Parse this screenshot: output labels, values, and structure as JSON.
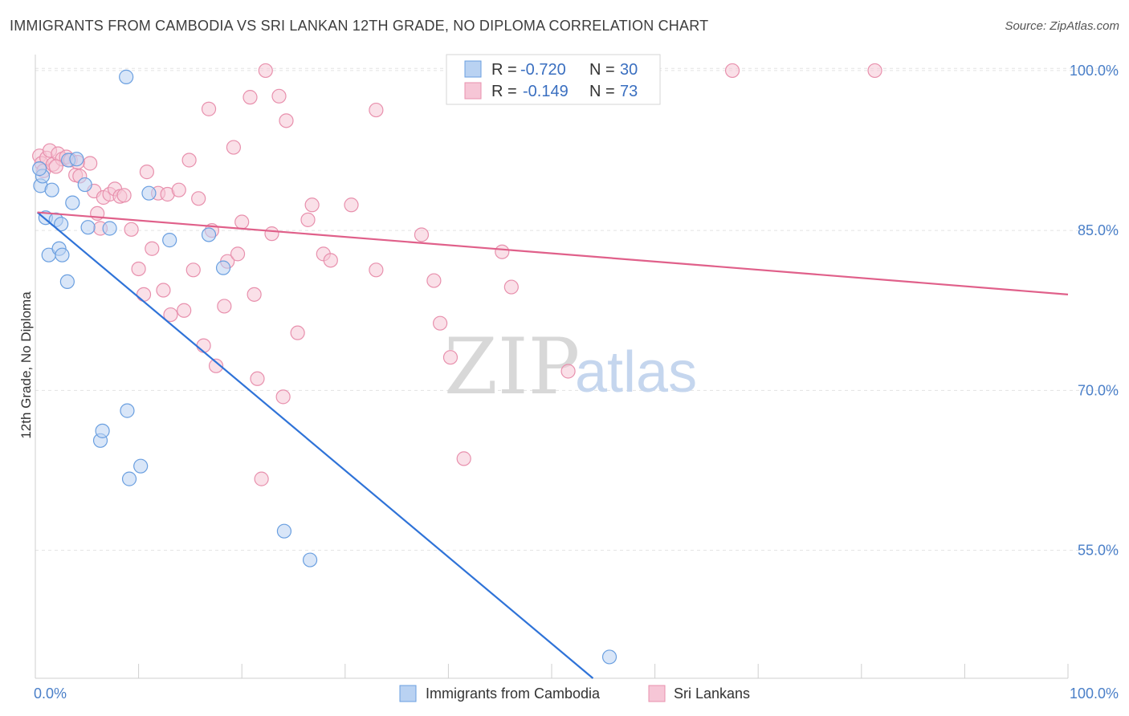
{
  "title": "IMMIGRANTS FROM CAMBODIA VS SRI LANKAN 12TH GRADE, NO DIPLOMA CORRELATION CHART",
  "source": "Source: ZipAtlas.com",
  "watermark": {
    "zip": "ZIP",
    "atlas": "atlas"
  },
  "legend_box": {
    "rows": [
      {
        "r_label": "R = ",
        "r_value": "-0.720",
        "n_label": "N = ",
        "n_value": "30"
      },
      {
        "r_label": "R = ",
        "r_value": "-0.149",
        "n_label": "N = ",
        "n_value": "73"
      }
    ]
  },
  "chart_data": {
    "type": "scatter",
    "xlabel": "",
    "ylabel": "12th Grade, No Diploma",
    "xlim": [
      0,
      100
    ],
    "ylim": [
      43,
      101.5
    ],
    "x_tick_labels": [
      "0.0%",
      "100.0%"
    ],
    "y_ticks": [
      {
        "value": 100,
        "label": "100.0%"
      },
      {
        "value": 85,
        "label": "85.0%"
      },
      {
        "value": 70,
        "label": "70.0%"
      },
      {
        "value": 55,
        "label": "55.0%"
      }
    ],
    "grid": "horizontal dashed",
    "legend_position": "bottom",
    "series": [
      {
        "name": "Immigrants from Cambodia",
        "color": "#6a9fe0",
        "fill": "#b9d2f2",
        "line_color": "#2f73d8",
        "trend": {
          "x": [
            0.2,
            54
          ],
          "y": [
            86.7,
            43
          ]
        },
        "points": [
          {
            "x": 0.5,
            "y": 89.2
          },
          {
            "x": 0.7,
            "y": 90.1
          },
          {
            "x": 1.0,
            "y": 86.2
          },
          {
            "x": 1.3,
            "y": 82.7
          },
          {
            "x": 1.6,
            "y": 88.8
          },
          {
            "x": 2.0,
            "y": 86.0
          },
          {
            "x": 2.3,
            "y": 83.3
          },
          {
            "x": 2.5,
            "y": 85.6
          },
          {
            "x": 2.6,
            "y": 82.7
          },
          {
            "x": 3.1,
            "y": 80.2
          },
          {
            "x": 3.2,
            "y": 91.6
          },
          {
            "x": 3.6,
            "y": 87.6
          },
          {
            "x": 4.0,
            "y": 91.7
          },
          {
            "x": 4.8,
            "y": 89.3
          },
          {
            "x": 5.1,
            "y": 85.3
          },
          {
            "x": 7.2,
            "y": 85.2
          },
          {
            "x": 8.8,
            "y": 99.4
          },
          {
            "x": 8.9,
            "y": 68.1
          },
          {
            "x": 6.3,
            "y": 65.3
          },
          {
            "x": 6.5,
            "y": 66.2
          },
          {
            "x": 9.1,
            "y": 61.7
          },
          {
            "x": 10.2,
            "y": 62.9
          },
          {
            "x": 11.0,
            "y": 88.5
          },
          {
            "x": 13.0,
            "y": 84.1
          },
          {
            "x": 16.8,
            "y": 84.6
          },
          {
            "x": 18.2,
            "y": 81.5
          },
          {
            "x": 24.1,
            "y": 56.8
          },
          {
            "x": 26.6,
            "y": 54.1
          },
          {
            "x": 55.6,
            "y": 45.0
          },
          {
            "x": 0.4,
            "y": 90.8
          }
        ]
      },
      {
        "name": "Sri Lankans",
        "color": "#e890ad",
        "fill": "#f6c6d6",
        "line_color": "#e0608a",
        "trend": {
          "x": [
            0.2,
            100
          ],
          "y": [
            86.7,
            79.0
          ]
        },
        "points": [
          {
            "x": 0.4,
            "y": 92.0
          },
          {
            "x": 0.6,
            "y": 91.3
          },
          {
            "x": 0.8,
            "y": 90.6
          },
          {
            "x": 1.1,
            "y": 91.8
          },
          {
            "x": 1.4,
            "y": 92.5
          },
          {
            "x": 1.7,
            "y": 91.2
          },
          {
            "x": 2.2,
            "y": 92.2
          },
          {
            "x": 2.6,
            "y": 91.7
          },
          {
            "x": 3.0,
            "y": 91.9
          },
          {
            "x": 3.4,
            "y": 91.6
          },
          {
            "x": 3.9,
            "y": 90.2
          },
          {
            "x": 4.3,
            "y": 90.1
          },
          {
            "x": 5.3,
            "y": 91.3
          },
          {
            "x": 5.7,
            "y": 88.7
          },
          {
            "x": 6.0,
            "y": 86.6
          },
          {
            "x": 6.3,
            "y": 85.2
          },
          {
            "x": 6.6,
            "y": 88.1
          },
          {
            "x": 7.2,
            "y": 88.4
          },
          {
            "x": 7.7,
            "y": 88.9
          },
          {
            "x": 8.2,
            "y": 88.2
          },
          {
            "x": 8.6,
            "y": 88.3
          },
          {
            "x": 9.3,
            "y": 85.1
          },
          {
            "x": 10.0,
            "y": 81.4
          },
          {
            "x": 10.5,
            "y": 79.0
          },
          {
            "x": 10.8,
            "y": 90.5
          },
          {
            "x": 11.3,
            "y": 83.3
          },
          {
            "x": 11.9,
            "y": 88.5
          },
          {
            "x": 12.4,
            "y": 79.4
          },
          {
            "x": 12.8,
            "y": 88.4
          },
          {
            "x": 13.1,
            "y": 77.1
          },
          {
            "x": 13.9,
            "y": 88.8
          },
          {
            "x": 14.4,
            "y": 77.5
          },
          {
            "x": 14.9,
            "y": 91.6
          },
          {
            "x": 15.3,
            "y": 81.3
          },
          {
            "x": 15.8,
            "y": 88.0
          },
          {
            "x": 16.3,
            "y": 74.2
          },
          {
            "x": 16.8,
            "y": 96.4
          },
          {
            "x": 17.1,
            "y": 85.0
          },
          {
            "x": 17.5,
            "y": 72.3
          },
          {
            "x": 18.3,
            "y": 77.9
          },
          {
            "x": 18.6,
            "y": 82.1
          },
          {
            "x": 19.2,
            "y": 92.8
          },
          {
            "x": 19.6,
            "y": 82.8
          },
          {
            "x": 20.0,
            "y": 85.8
          },
          {
            "x": 20.8,
            "y": 97.5
          },
          {
            "x": 21.2,
            "y": 79.0
          },
          {
            "x": 21.5,
            "y": 71.1
          },
          {
            "x": 21.9,
            "y": 61.7
          },
          {
            "x": 22.3,
            "y": 100.0
          },
          {
            "x": 22.9,
            "y": 84.7
          },
          {
            "x": 23.6,
            "y": 97.6
          },
          {
            "x": 24.0,
            "y": 69.4
          },
          {
            "x": 24.3,
            "y": 95.3
          },
          {
            "x": 25.4,
            "y": 75.4
          },
          {
            "x": 26.4,
            "y": 86.0
          },
          {
            "x": 26.8,
            "y": 87.4
          },
          {
            "x": 27.9,
            "y": 82.8
          },
          {
            "x": 28.6,
            "y": 82.2
          },
          {
            "x": 30.6,
            "y": 87.4
          },
          {
            "x": 33.0,
            "y": 96.3
          },
          {
            "x": 33.0,
            "y": 81.3
          },
          {
            "x": 37.4,
            "y": 84.6
          },
          {
            "x": 38.6,
            "y": 80.3
          },
          {
            "x": 39.2,
            "y": 76.3
          },
          {
            "x": 40.2,
            "y": 73.1
          },
          {
            "x": 41.5,
            "y": 63.6
          },
          {
            "x": 45.2,
            "y": 83.0
          },
          {
            "x": 46.1,
            "y": 79.7
          },
          {
            "x": 51.6,
            "y": 71.8
          },
          {
            "x": 67.5,
            "y": 100.0
          },
          {
            "x": 81.3,
            "y": 100.0
          },
          {
            "x": 4.1,
            "y": 91.4
          },
          {
            "x": 2.0,
            "y": 91.0
          }
        ]
      }
    ]
  }
}
